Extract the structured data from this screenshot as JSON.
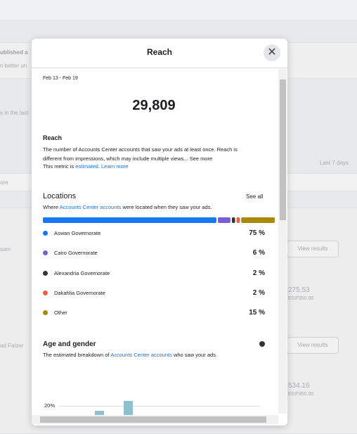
{
  "background": {
    "notice_title": "ublished a",
    "notice_text": "n better un",
    "period_text": "s in the last",
    "range": "Last 7 days",
    "search": "ore",
    "row1_label": "sam",
    "row1_button": "View results",
    "row1_amount": "275.53",
    "row1_budget": "EGP350.00",
    "row2_label": "ad Faizer",
    "row2_button": "View results",
    "row2_amount": "534.16",
    "row2_budget": "EGP350.00"
  },
  "modal": {
    "title": "Reach",
    "date_range": "Feb 13 - Feb 19",
    "total": "29,809",
    "reach": {
      "heading": "Reach",
      "description": "The number of Accounts Center accounts that saw your ads at least once. Reach is different from impressions, which may include multiple views...",
      "see_more": "See more",
      "metric_pre": "This metric is",
      "metric_link": "estimated",
      "metric_sep": ".",
      "learn_more": "Learn more"
    },
    "locations": {
      "heading": "Locations",
      "see_all": "See all",
      "subtitle_pre": "Where",
      "subtitle_link": "Accounts Center accounts",
      "subtitle_post": "were located when they saw your ads.",
      "items": [
        {
          "name": "Aswan Governorate",
          "color": "#1877f2",
          "value": 75,
          "value_label": "75 %"
        },
        {
          "name": "Cairo Governorate",
          "color": "#7a5cd6",
          "value": 6,
          "value_label": "6 %"
        },
        {
          "name": "Alexandria Governorate",
          "color": "#353535",
          "value": 2,
          "value_label": "2 %"
        },
        {
          "name": "Dakahlia Governorate",
          "color": "#e8604c",
          "value": 2,
          "value_label": "2 %"
        },
        {
          "name": "Other",
          "color": "#a8890a",
          "value": 15,
          "value_label": "15 %"
        }
      ]
    },
    "age_gender": {
      "heading": "Age and gender",
      "subtitle_pre": "The estimated breakdown of",
      "subtitle_link": "Accounts Center accounts",
      "subtitle_post": "who saw your ads.",
      "yticks": [
        {
          "value": 20,
          "label": "20%"
        }
      ]
    }
  }
}
